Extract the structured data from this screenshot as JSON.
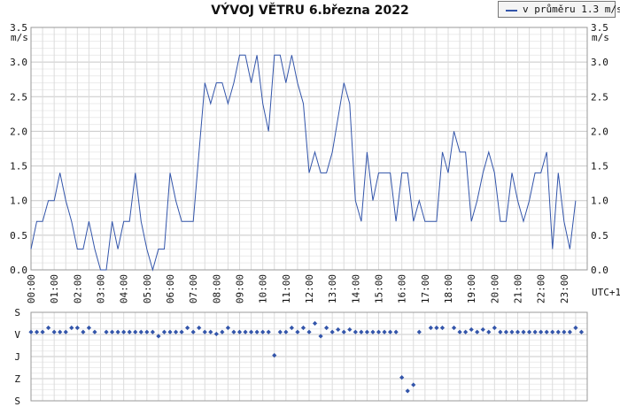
{
  "title": "VÝVOJ VĚTRU  6.března 2022",
  "legend": {
    "label": "v průměru 1.3 m/s",
    "color": "#3355aa"
  },
  "chart_data": [
    {
      "type": "line",
      "title": "VÝVOJ VĚTRU  6.března 2022",
      "ylabel": "m/s",
      "xlabel": "UTC+1",
      "ylim": [
        0,
        3.5
      ],
      "yticks": [
        "0.0",
        "0.5",
        "1.0",
        "1.5",
        "2.0",
        "2.5",
        "3.0",
        "3.5"
      ],
      "xticks": [
        "00:00",
        "01:00",
        "02:00",
        "03:00",
        "04:00",
        "05:00",
        "06:00",
        "07:00",
        "08:00",
        "09:00",
        "10:00",
        "11:00",
        "12:00",
        "13:00",
        "14:00",
        "15:00",
        "16:00",
        "17:00",
        "18:00",
        "19:00",
        "20:00",
        "21:00",
        "22:00",
        "23:00"
      ],
      "grid": true,
      "series": [
        {
          "name": "v průměru 1.3 m/s",
          "color": "#3355aa",
          "values": [
            0.3,
            0.7,
            0.7,
            1.0,
            1.0,
            1.4,
            1.0,
            0.7,
            0.3,
            0.3,
            0.7,
            0.3,
            0.0,
            0.0,
            0.7,
            0.3,
            0.7,
            0.7,
            1.4,
            0.7,
            0.3,
            0.0,
            0.3,
            0.3,
            1.4,
            1.0,
            0.7,
            0.7,
            0.7,
            1.7,
            2.7,
            2.4,
            2.7,
            2.7,
            2.4,
            2.7,
            3.1,
            3.1,
            2.7,
            3.1,
            2.4,
            2.0,
            3.1,
            3.1,
            2.7,
            3.1,
            2.7,
            2.4,
            1.4,
            1.7,
            1.4,
            1.4,
            1.7,
            2.2,
            2.7,
            2.4,
            1.0,
            0.7,
            1.7,
            1.0,
            1.4,
            1.4,
            1.4,
            0.7,
            1.4,
            1.4,
            0.7,
            1.0,
            0.7,
            0.7,
            0.7,
            1.7,
            1.4,
            2.0,
            1.7,
            1.7,
            0.7,
            1.0,
            1.4,
            1.7,
            1.4,
            0.7,
            0.7,
            1.4,
            1.0,
            0.7,
            1.0,
            1.4,
            1.4,
            1.7,
            0.3,
            1.4,
            0.7,
            0.3,
            1.0
          ]
        }
      ]
    },
    {
      "type": "scatter",
      "title": "",
      "ylabel": "",
      "ycategories": [
        "S",
        "V",
        "J",
        "Z",
        "S"
      ],
      "ylim": [
        0,
        360
      ],
      "grid": true,
      "series": [
        {
          "name": "",
          "color": "#3355aa",
          "values": [
            80,
            80,
            80,
            63,
            80,
            80,
            80,
            63,
            63,
            80,
            63,
            80,
            null,
            80,
            80,
            80,
            80,
            80,
            80,
            80,
            80,
            80,
            97,
            80,
            80,
            80,
            80,
            63,
            80,
            63,
            80,
            80,
            88,
            80,
            63,
            80,
            80,
            80,
            80,
            80,
            80,
            80,
            175,
            80,
            80,
            63,
            80,
            63,
            80,
            45,
            97,
            63,
            80,
            70,
            80,
            70,
            80,
            80,
            80,
            80,
            80,
            80,
            80,
            80,
            265,
            320,
            295,
            80,
            null,
            63,
            63,
            63,
            null,
            63,
            80,
            80,
            70,
            80,
            70,
            80,
            63,
            80,
            80,
            80,
            80,
            80,
            80,
            80,
            80,
            80,
            80,
            80,
            80,
            80,
            63,
            80
          ]
        }
      ]
    }
  ]
}
